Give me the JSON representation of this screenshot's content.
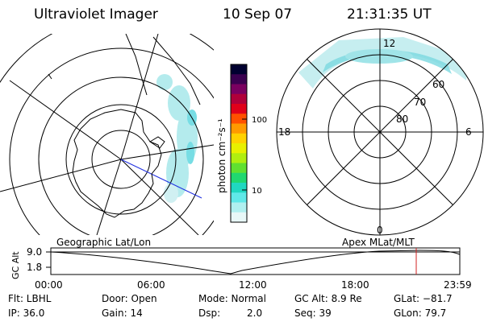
{
  "header": {
    "instrument": "Ultraviolet Imager",
    "date": "10 Sep 07",
    "time": "21:31:35 UT"
  },
  "colorbar": {
    "unit_label": "photon cm⁻²s⁻¹",
    "ticks": [
      "100",
      "10"
    ],
    "colors": [
      "#000030",
      "#3a0050",
      "#7a0060",
      "#b0003a",
      "#e0001a",
      "#ff5000",
      "#ff9a00",
      "#ffd200",
      "#e8f000",
      "#b0ee10",
      "#60e030",
      "#20d870",
      "#20d8c0",
      "#60e8e8",
      "#b0f0f0",
      "#e8f8f8"
    ]
  },
  "polar_plot": {
    "mlt_labels": [
      "12",
      "18",
      "6",
      "0"
    ],
    "lat_labels": [
      "60",
      "70",
      "80"
    ]
  },
  "timeline": {
    "left_label": "Geographic Lat/Lon",
    "right_label": "Apex MLat/MLT",
    "axis_label": "GC Alt",
    "y_ticks": [
      "9.0",
      "1.8"
    ],
    "x_ticks": [
      "00:00",
      "06:00",
      "12:00",
      "18:00",
      "23:59"
    ]
  },
  "status": {
    "filter": "Flt: LBHL",
    "door": "Door: Open",
    "mode": "Mode: Normal",
    "gc_alt": "GC Alt: 8.9 Re",
    "glat": "GLat: −81.7",
    "ip": "IP: 36.0",
    "gain": "Gain: 14",
    "dsp_label": "Dsp:",
    "dsp_value": "2.0",
    "seq": "Seq: 39",
    "glon": "GLon: 79.7"
  }
}
